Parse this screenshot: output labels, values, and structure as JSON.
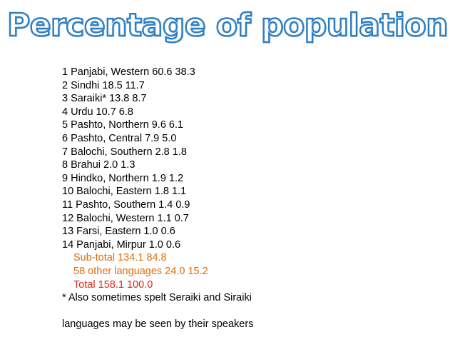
{
  "title": "Percentage of population",
  "rows": [
    "1 Panjabi, Western 60.6 38.3",
    "2 Sindhi 18.5 11.7",
    "3 Saraiki* 13.8 8.7",
    "4 Urdu 10.7 6.8",
    "5 Pashto, Northern 9.6 6.1",
    "6 Pashto, Central 7.9 5.0",
    "7 Balochi, Southern 2.8 1.8",
    "8 Brahui 2.0 1.3",
    "9 Hindko, Northern 1.9 1.2",
    "10 Balochi, Eastern 1.8 1.1",
    "11 Pashto, Southern 1.4 0.9",
    "12 Balochi, Western 1.1 0.7",
    "13 Farsi, Eastern 1.0 0.6",
    "14 Panjabi, Mirpur 1.0 0.6"
  ],
  "subtotal": "Sub-total 134.1 84.8",
  "other": "58 other languages 24.0 15.2",
  "total": "Total 158.1 100.0",
  "footnote": "* Also sometimes spelt Seraiki and Siraiki",
  "closing": "languages may be seen by their speakers",
  "colors": {
    "title_outline": "#2e7fc2",
    "summary_orange": "#e36c0a",
    "total_red": "#d9261c"
  }
}
